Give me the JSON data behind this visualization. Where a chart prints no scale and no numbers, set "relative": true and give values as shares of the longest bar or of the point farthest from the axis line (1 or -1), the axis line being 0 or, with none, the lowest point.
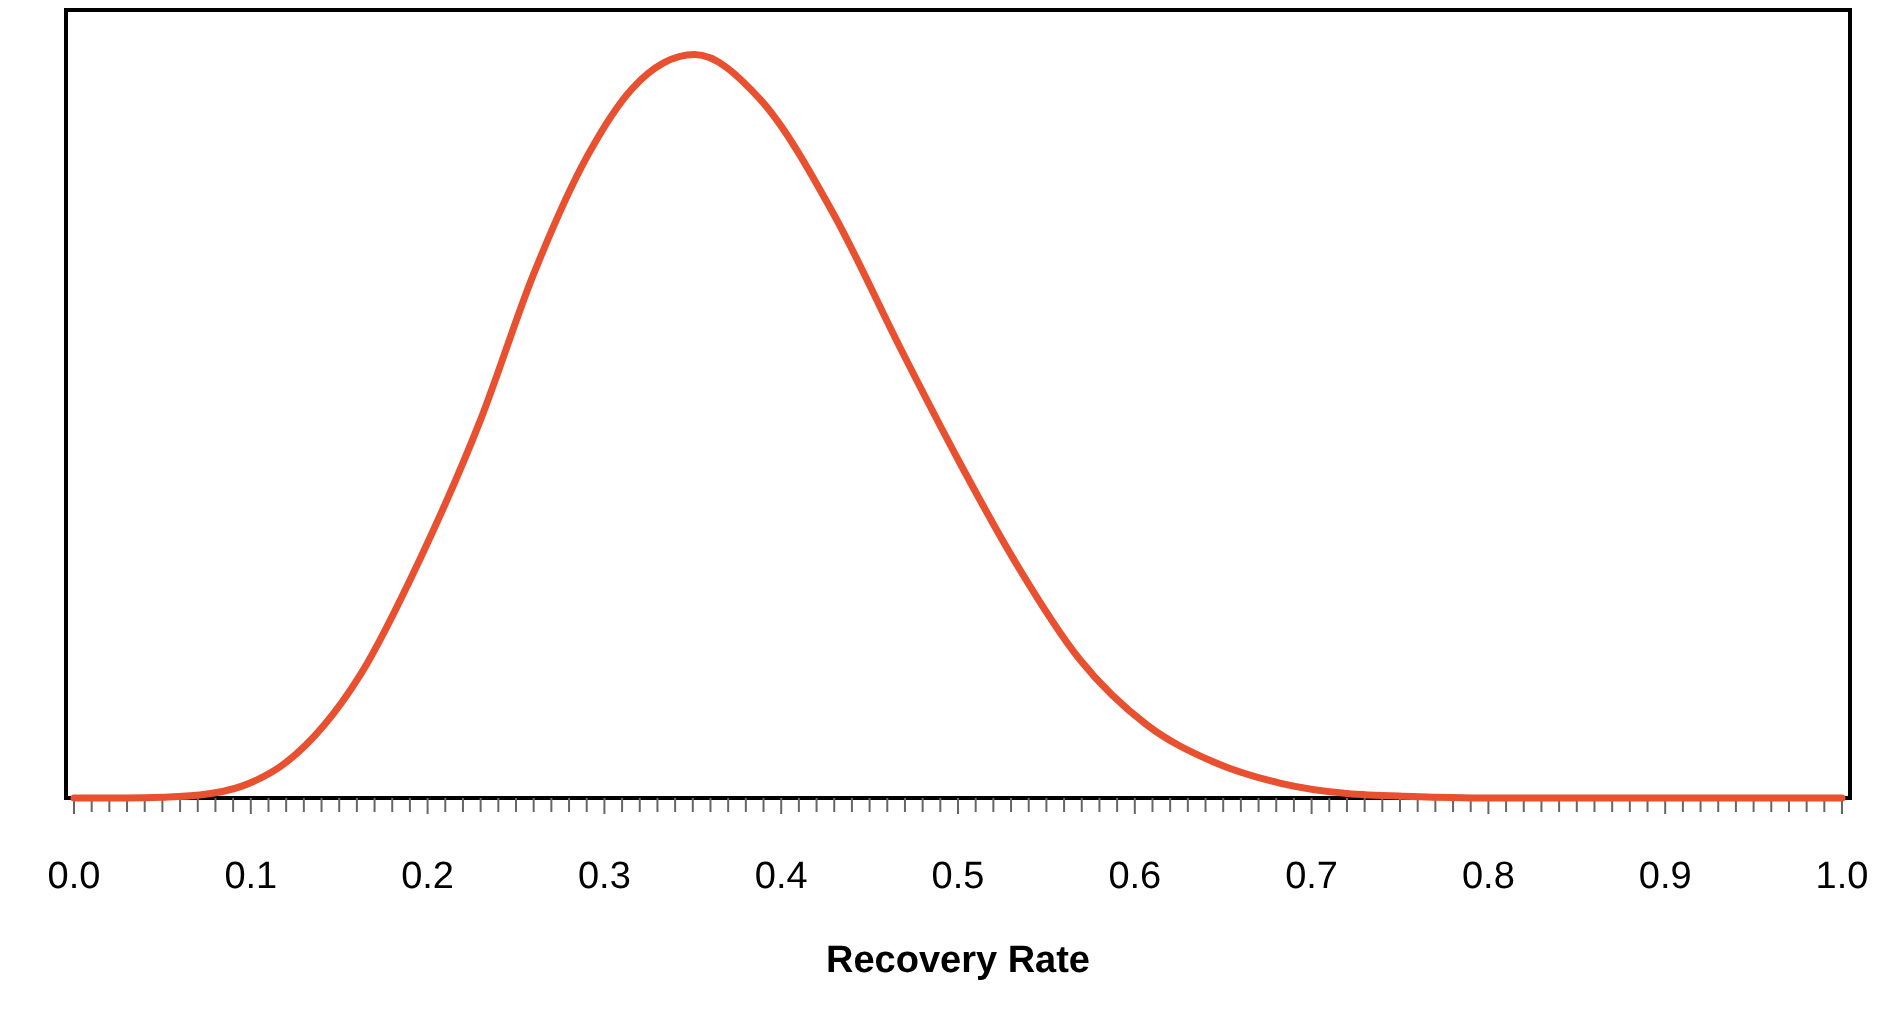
{
  "chart_data": {
    "type": "line",
    "relative": true,
    "xlabel": "Recovery Rate",
    "xlim": [
      0,
      1
    ],
    "xticks": [
      {
        "value": 0,
        "label": "0.0"
      },
      {
        "value": 0.01,
        "label": null
      },
      {
        "value": 0.02,
        "label": null
      },
      {
        "value": 0.03,
        "label": null
      },
      {
        "value": 0.04,
        "label": null
      },
      {
        "value": 0.05,
        "label": null
      },
      {
        "value": 0.06,
        "label": null
      },
      {
        "value": 0.07,
        "label": null
      },
      {
        "value": 0.08,
        "label": null
      },
      {
        "value": 0.09,
        "label": null
      },
      {
        "value": 0.1,
        "label": "0.1"
      },
      {
        "value": 0.11,
        "label": null
      },
      {
        "value": 0.12,
        "label": null
      },
      {
        "value": 0.13,
        "label": null
      },
      {
        "value": 0.14,
        "label": null
      },
      {
        "value": 0.15,
        "label": null
      },
      {
        "value": 0.16,
        "label": null
      },
      {
        "value": 0.17,
        "label": null
      },
      {
        "value": 0.18,
        "label": null
      },
      {
        "value": 0.19,
        "label": null
      },
      {
        "value": 0.2,
        "label": "0.2"
      },
      {
        "value": 0.21,
        "label": null
      },
      {
        "value": 0.22,
        "label": null
      },
      {
        "value": 0.23,
        "label": null
      },
      {
        "value": 0.24,
        "label": null
      },
      {
        "value": 0.25,
        "label": null
      },
      {
        "value": 0.26,
        "label": null
      },
      {
        "value": 0.27,
        "label": null
      },
      {
        "value": 0.28,
        "label": null
      },
      {
        "value": 0.29,
        "label": null
      },
      {
        "value": 0.3,
        "label": "0.3"
      },
      {
        "value": 0.31,
        "label": null
      },
      {
        "value": 0.32,
        "label": null
      },
      {
        "value": 0.33,
        "label": null
      },
      {
        "value": 0.34,
        "label": null
      },
      {
        "value": 0.35,
        "label": null
      },
      {
        "value": 0.36,
        "label": null
      },
      {
        "value": 0.37,
        "label": null
      },
      {
        "value": 0.38,
        "label": null
      },
      {
        "value": 0.39,
        "label": null
      },
      {
        "value": 0.4,
        "label": "0.4"
      },
      {
        "value": 0.41,
        "label": null
      },
      {
        "value": 0.42,
        "label": null
      },
      {
        "value": 0.43,
        "label": null
      },
      {
        "value": 0.44,
        "label": null
      },
      {
        "value": 0.45,
        "label": null
      },
      {
        "value": 0.46,
        "label": null
      },
      {
        "value": 0.47,
        "label": null
      },
      {
        "value": 0.48,
        "label": null
      },
      {
        "value": 0.49,
        "label": null
      },
      {
        "value": 0.5,
        "label": "0.5"
      },
      {
        "value": 0.51,
        "label": null
      },
      {
        "value": 0.52,
        "label": null
      },
      {
        "value": 0.53,
        "label": null
      },
      {
        "value": 0.54,
        "label": null
      },
      {
        "value": 0.55,
        "label": null
      },
      {
        "value": 0.56,
        "label": null
      },
      {
        "value": 0.57,
        "label": null
      },
      {
        "value": 0.58,
        "label": null
      },
      {
        "value": 0.59,
        "label": null
      },
      {
        "value": 0.6,
        "label": "0.6"
      },
      {
        "value": 0.61,
        "label": null
      },
      {
        "value": 0.62,
        "label": null
      },
      {
        "value": 0.63,
        "label": null
      },
      {
        "value": 0.64,
        "label": null
      },
      {
        "value": 0.65,
        "label": null
      },
      {
        "value": 0.66,
        "label": null
      },
      {
        "value": 0.67,
        "label": null
      },
      {
        "value": 0.68,
        "label": null
      },
      {
        "value": 0.69,
        "label": null
      },
      {
        "value": 0.7,
        "label": "0.7"
      },
      {
        "value": 0.71,
        "label": null
      },
      {
        "value": 0.72,
        "label": null
      },
      {
        "value": 0.73,
        "label": null
      },
      {
        "value": 0.74,
        "label": null
      },
      {
        "value": 0.75,
        "label": null
      },
      {
        "value": 0.76,
        "label": null
      },
      {
        "value": 0.77,
        "label": null
      },
      {
        "value": 0.78,
        "label": null
      },
      {
        "value": 0.79,
        "label": null
      },
      {
        "value": 0.8,
        "label": "0.8"
      },
      {
        "value": 0.81,
        "label": null
      },
      {
        "value": 0.82,
        "label": null
      },
      {
        "value": 0.83,
        "label": null
      },
      {
        "value": 0.84,
        "label": null
      },
      {
        "value": 0.85,
        "label": null
      },
      {
        "value": 0.86,
        "label": null
      },
      {
        "value": 0.87,
        "label": null
      },
      {
        "value": 0.88,
        "label": null
      },
      {
        "value": 0.89,
        "label": null
      },
      {
        "value": 0.9,
        "label": "0.9"
      },
      {
        "value": 0.91,
        "label": null
      },
      {
        "value": 0.92,
        "label": null
      },
      {
        "value": 0.93,
        "label": null
      },
      {
        "value": 0.94,
        "label": null
      },
      {
        "value": 0.95,
        "label": null
      },
      {
        "value": 0.96,
        "label": null
      },
      {
        "value": 0.97,
        "label": null
      },
      {
        "value": 0.98,
        "label": null
      },
      {
        "value": 0.99,
        "label": null
      },
      {
        "value": 1,
        "label": "1.0"
      }
    ],
    "x": [
      0,
      0.03,
      0.05,
      0.071,
      0.095,
      0.12,
      0.162,
      0.196,
      0.23,
      0.26,
      0.29,
      0.316,
      0.351,
      0.388,
      0.43,
      0.467,
      0.501,
      0.531,
      0.569,
      0.607,
      0.644,
      0.682,
      0.72,
      0.757,
      0.8,
      0.85,
      0.9,
      0.95,
      1
    ],
    "series": [
      {
        "color": "#e8502f",
        "values": [
          0,
          0,
          0.001,
          0.004,
          0.016,
          0.048,
          0.166,
          0.323,
          0.509,
          0.705,
          0.862,
          0.955,
          1,
          0.94,
          0.784,
          0.607,
          0.451,
          0.323,
          0.186,
          0.098,
          0.049,
          0.02,
          0.006,
          0.002,
          0,
          0,
          0,
          0,
          0
        ]
      }
    ],
    "marker": "none",
    "line_style": "solid"
  }
}
